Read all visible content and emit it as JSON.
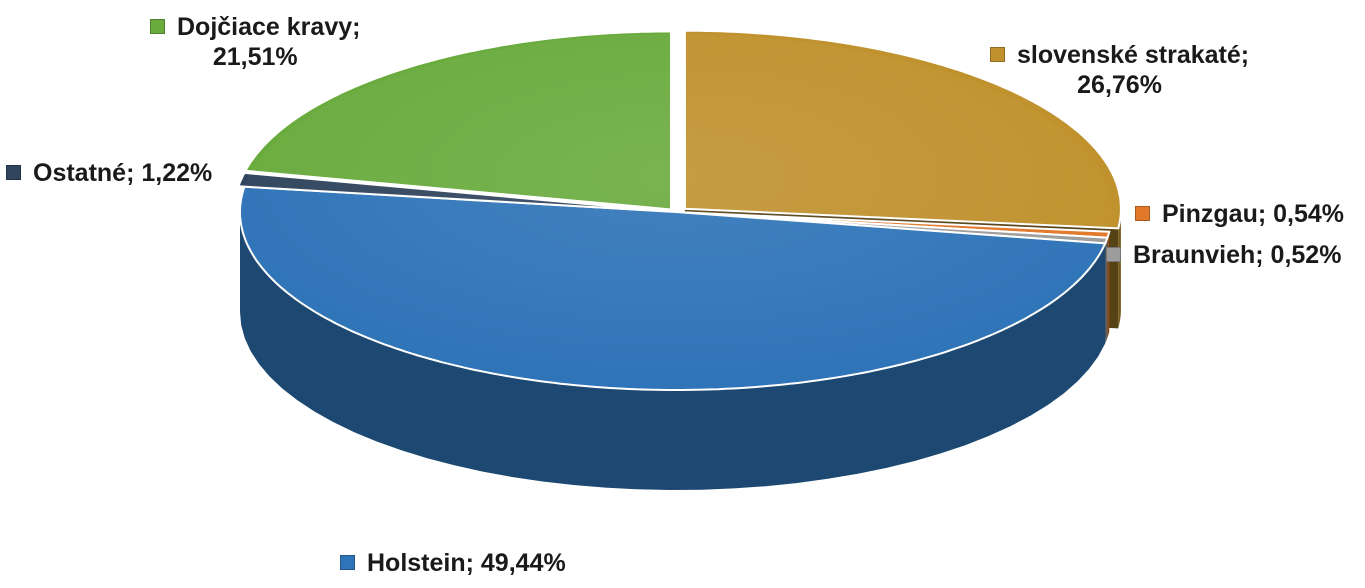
{
  "chart_data": {
    "type": "pie",
    "title": "",
    "slices": [
      {
        "name": "slovenské strakaté",
        "value": 26.76,
        "value_label": "26,76%",
        "color": "#c0922e"
      },
      {
        "name": "Pinzgau",
        "value": 0.54,
        "value_label": "0,54%",
        "color": "#e1782a"
      },
      {
        "name": "Braunvieh",
        "value": 0.52,
        "value_label": "0,52%",
        "color": "#9c9c9c"
      },
      {
        "name": "Holstein",
        "value": 49.44,
        "value_label": "49,44%",
        "color": "#2f74b8"
      },
      {
        "name": "Ostatné",
        "value": 1.22,
        "value_label": "1,22%",
        "color": "#31455e"
      },
      {
        "name": "Dojčiace kravy",
        "value": 21.51,
        "value_label": "21,51%",
        "color": "#6aab3e"
      }
    ],
    "label_separator": "; ",
    "legend": "labels next to slices",
    "style": "3d pie"
  }
}
